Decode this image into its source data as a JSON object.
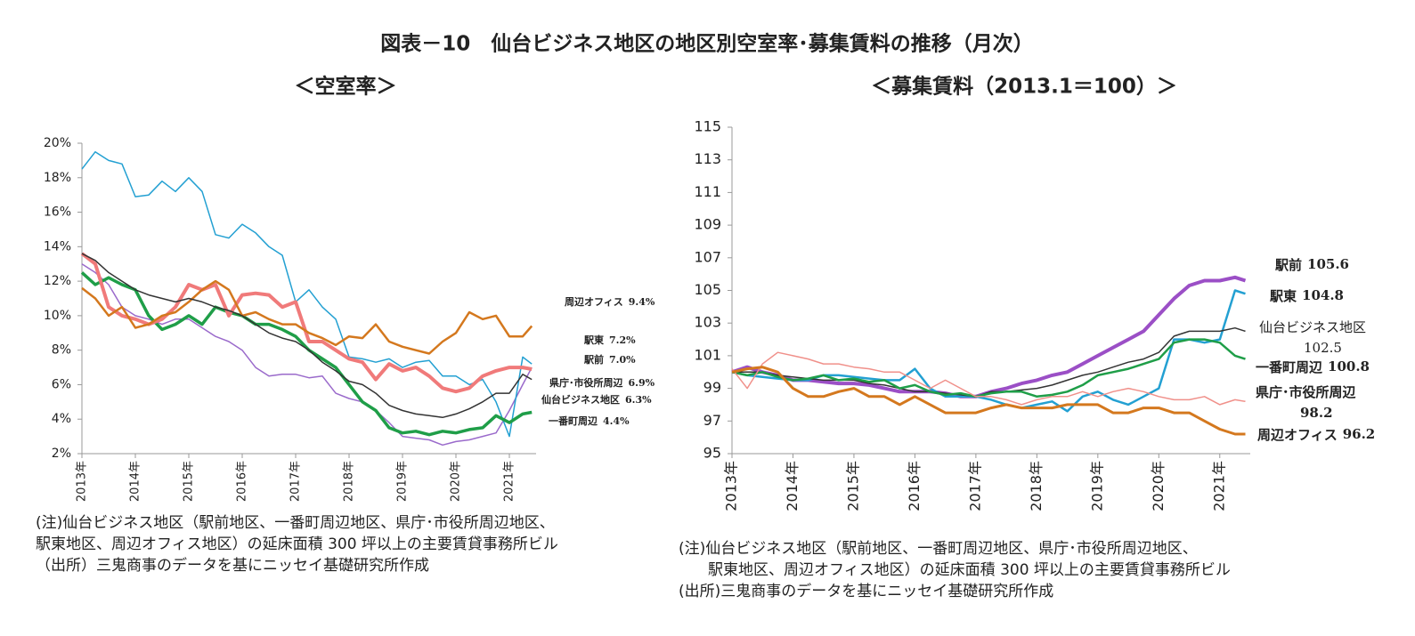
{
  "title": "図表－10　仙台ビジネス地区の地区別空室率･募集賃料の推移（月次）",
  "chart_data": [
    {
      "type": "line",
      "subtitle": "＜空室率＞",
      "x": [
        2013,
        2013.25,
        2013.5,
        2013.75,
        2014,
        2014.25,
        2014.5,
        2014.75,
        2015,
        2015.25,
        2015.5,
        2015.75,
        2016,
        2016.25,
        2016.5,
        2016.75,
        2017,
        2017.25,
        2017.5,
        2017.75,
        2018,
        2018.25,
        2018.5,
        2018.75,
        2019,
        2019.25,
        2019.5,
        2019.75,
        2020,
        2020.25,
        2020.5,
        2020.75,
        2021,
        2021.25,
        2021.42
      ],
      "xlim": [
        2013,
        2021.5
      ],
      "xticks": [
        {
          "value": 2013,
          "label": "2013年"
        },
        {
          "value": 2014,
          "label": "2014年"
        },
        {
          "value": 2015,
          "label": "2015年"
        },
        {
          "value": 2016,
          "label": "2016年"
        },
        {
          "value": 2017,
          "label": "2017年"
        },
        {
          "value": 2018,
          "label": "2018年"
        },
        {
          "value": 2019,
          "label": "2019年"
        },
        {
          "value": 2020,
          "label": "2020年"
        },
        {
          "value": 2021,
          "label": "2021年"
        }
      ],
      "ylim": [
        2,
        20
      ],
      "yticks": [
        {
          "value": 2,
          "label": "2%"
        },
        {
          "value": 4,
          "label": "4%"
        },
        {
          "value": 6,
          "label": "6%"
        },
        {
          "value": 8,
          "label": "8%"
        },
        {
          "value": 10,
          "label": "10%"
        },
        {
          "value": 12,
          "label": "12%"
        },
        {
          "value": 14,
          "label": "14%"
        },
        {
          "value": 16,
          "label": "16%"
        },
        {
          "value": 18,
          "label": "18%"
        },
        {
          "value": 20,
          "label": "20%"
        }
      ],
      "series": [
        {
          "name": "駅前",
          "color": "#9a6acb",
          "values": [
            13.0,
            12.5,
            11.8,
            10.5,
            10.0,
            9.8,
            9.5,
            9.8,
            9.8,
            9.3,
            8.8,
            8.5,
            8.0,
            7.0,
            6.5,
            6.6,
            6.6,
            6.4,
            6.5,
            5.5,
            5.2,
            5.0,
            4.5,
            3.8,
            3.0,
            2.9,
            2.8,
            2.5,
            2.7,
            2.8,
            3.0,
            3.2,
            4.5,
            6.0,
            7.0
          ],
          "value_labels": [
            null,
            null,
            null,
            null,
            null,
            null,
            null,
            null,
            null,
            null,
            null,
            null,
            null,
            null,
            null,
            null,
            null,
            null,
            null,
            null,
            null,
            null,
            null,
            null,
            null,
            null,
            null,
            null,
            null,
            null,
            null,
            null,
            null,
            null,
            "7.0%"
          ]
        },
        {
          "name": "駅東",
          "color": "#23a0d2",
          "values": [
            18.5,
            19.5,
            19.0,
            18.8,
            16.9,
            17.0,
            17.8,
            17.2,
            18.0,
            17.2,
            14.7,
            14.5,
            15.3,
            14.8,
            14.0,
            13.5,
            10.8,
            11.5,
            10.5,
            9.8,
            7.6,
            7.5,
            7.3,
            7.5,
            7.0,
            7.3,
            7.4,
            6.5,
            6.5,
            6.0,
            6.3,
            5.0,
            3.0,
            7.6,
            7.2
          ],
          "value_labels": [
            null,
            null,
            null,
            null,
            null,
            null,
            null,
            null,
            null,
            null,
            null,
            null,
            null,
            null,
            null,
            null,
            null,
            null,
            null,
            null,
            null,
            null,
            null,
            null,
            null,
            null,
            null,
            null,
            null,
            null,
            null,
            null,
            null,
            null,
            "7.2%"
          ]
        },
        {
          "name": "一番町周辺",
          "color": "#1f9e48",
          "values": [
            12.5,
            11.8,
            12.2,
            11.8,
            11.5,
            10.0,
            9.2,
            9.5,
            10.0,
            9.5,
            10.5,
            10.2,
            10.0,
            9.5,
            9.5,
            9.2,
            8.8,
            8.0,
            7.5,
            7.0,
            6.0,
            5.0,
            4.5,
            3.5,
            3.2,
            3.3,
            3.1,
            3.3,
            3.2,
            3.4,
            3.5,
            4.2,
            3.8,
            4.3,
            4.4
          ],
          "value_labels": [
            null,
            null,
            null,
            null,
            null,
            null,
            null,
            null,
            null,
            null,
            null,
            null,
            null,
            null,
            null,
            null,
            null,
            null,
            null,
            null,
            null,
            null,
            null,
            null,
            null,
            null,
            null,
            null,
            null,
            null,
            null,
            null,
            null,
            null,
            "4.4%"
          ]
        },
        {
          "name": "県庁･市役所周辺",
          "color": "#f07a7a",
          "values": [
            13.6,
            13.0,
            10.5,
            10.0,
            9.8,
            9.5,
            9.8,
            10.5,
            11.8,
            11.5,
            11.8,
            10.0,
            11.2,
            11.3,
            11.2,
            10.5,
            10.8,
            8.5,
            8.5,
            8.0,
            7.5,
            7.3,
            6.3,
            7.2,
            6.8,
            7.0,
            6.5,
            5.8,
            5.6,
            5.8,
            6.5,
            6.8,
            7.0,
            7.0,
            6.9
          ],
          "value_labels": [
            null,
            null,
            null,
            null,
            null,
            null,
            null,
            null,
            null,
            null,
            null,
            null,
            null,
            null,
            null,
            null,
            null,
            null,
            null,
            null,
            null,
            null,
            null,
            null,
            null,
            null,
            null,
            null,
            null,
            null,
            null,
            null,
            null,
            null,
            "6.9%"
          ]
        },
        {
          "name": "周辺オフィス",
          "color": "#d4781e",
          "values": [
            11.6,
            11.0,
            10.0,
            10.5,
            9.3,
            9.5,
            10.0,
            10.2,
            10.8,
            11.5,
            12.0,
            11.5,
            10.0,
            10.2,
            9.8,
            9.5,
            9.5,
            9.0,
            8.7,
            8.3,
            8.8,
            8.7,
            9.5,
            8.5,
            8.2,
            8.0,
            7.8,
            8.5,
            9.0,
            10.2,
            9.8,
            10.0,
            8.8,
            8.8,
            9.4
          ],
          "value_labels": [
            null,
            null,
            null,
            null,
            null,
            null,
            null,
            null,
            null,
            null,
            null,
            null,
            null,
            null,
            null,
            null,
            null,
            null,
            null,
            null,
            null,
            null,
            null,
            null,
            null,
            null,
            null,
            null,
            null,
            null,
            null,
            null,
            null,
            null,
            "9.4%"
          ]
        },
        {
          "name": "仙台ビジネス地区",
          "color": "#333333",
          "values": [
            13.6,
            13.2,
            12.5,
            12.0,
            11.5,
            11.2,
            11.0,
            10.8,
            11.0,
            10.8,
            10.5,
            10.3,
            10.0,
            9.5,
            9.0,
            8.7,
            8.5,
            8.0,
            7.3,
            6.8,
            6.2,
            6.0,
            5.5,
            4.8,
            4.5,
            4.3,
            4.2,
            4.1,
            4.3,
            4.6,
            5.0,
            5.5,
            5.5,
            6.6,
            6.3
          ],
          "value_labels": [
            null,
            null,
            null,
            null,
            null,
            null,
            null,
            null,
            null,
            null,
            null,
            null,
            null,
            null,
            null,
            null,
            null,
            null,
            null,
            null,
            null,
            null,
            null,
            null,
            null,
            null,
            null,
            null,
            null,
            null,
            null,
            null,
            null,
            null,
            "6.3%"
          ]
        }
      ],
      "notes": [
        "(注)仙台ビジネス地区（駅前地区、一番町周辺地区、県庁･市役所周辺地区、",
        "駅東地区、周辺オフィス地区）の延床面積 300 坪以上の主要賃貸事務所ビル",
        "（出所）三鬼商事のデータを基にニッセイ基礎研究所作成"
      ]
    },
    {
      "type": "line",
      "subtitle": "＜募集賃料（2013.1＝100）＞",
      "x": [
        2013,
        2013.25,
        2013.5,
        2013.75,
        2014,
        2014.25,
        2014.5,
        2014.75,
        2015,
        2015.25,
        2015.5,
        2015.75,
        2016,
        2016.25,
        2016.5,
        2016.75,
        2017,
        2017.25,
        2017.5,
        2017.75,
        2018,
        2018.25,
        2018.5,
        2018.75,
        2019,
        2019.25,
        2019.5,
        2019.75,
        2020,
        2020.25,
        2020.5,
        2020.75,
        2021,
        2021.25,
        2021.42
      ],
      "xlim": [
        2013,
        2021.5
      ],
      "xticks": [
        {
          "value": 2013,
          "label": "2013年"
        },
        {
          "value": 2014,
          "label": "2014年"
        },
        {
          "value": 2015,
          "label": "2015年"
        },
        {
          "value": 2016,
          "label": "2016年"
        },
        {
          "value": 2017,
          "label": "2017年"
        },
        {
          "value": 2018,
          "label": "2018年"
        },
        {
          "value": 2019,
          "label": "2019年"
        },
        {
          "value": 2020,
          "label": "2020年"
        },
        {
          "value": 2021,
          "label": "2021年"
        }
      ],
      "ylim": [
        95,
        115
      ],
      "yticks": [
        95,
        97,
        99,
        101,
        103,
        105,
        107,
        109,
        111,
        113,
        115
      ],
      "series": [
        {
          "name": "駅前",
          "color": "#9b4fc6",
          "values": [
            100.0,
            100.3,
            100.0,
            99.8,
            99.5,
            99.5,
            99.4,
            99.3,
            99.3,
            99.2,
            99.0,
            98.8,
            98.8,
            98.8,
            98.7,
            98.5,
            98.5,
            98.8,
            99.0,
            99.3,
            99.5,
            99.8,
            100.0,
            100.5,
            101.0,
            101.5,
            102.0,
            102.5,
            103.5,
            104.5,
            105.3,
            105.6,
            105.6,
            105.8,
            105.6
          ]
        },
        {
          "name": "駅東",
          "color": "#23a0d2",
          "values": [
            100.0,
            99.8,
            99.7,
            99.6,
            99.5,
            99.5,
            99.8,
            99.8,
            99.7,
            99.6,
            99.5,
            99.5,
            100.2,
            99.0,
            98.5,
            98.5,
            98.5,
            98.3,
            98.0,
            97.8,
            98.0,
            98.2,
            97.6,
            98.5,
            98.8,
            98.3,
            98.0,
            98.5,
            99.0,
            102.0,
            102.0,
            101.8,
            102.0,
            105.0,
            104.8
          ]
        },
        {
          "name": "仙台ビジネス地区",
          "color": "#333333",
          "values": [
            100.0,
            100.0,
            100.0,
            99.8,
            99.7,
            99.6,
            99.5,
            99.5,
            99.5,
            99.3,
            99.2,
            99.0,
            98.8,
            98.8,
            98.7,
            98.6,
            98.5,
            98.8,
            98.8,
            98.9,
            99.0,
            99.2,
            99.5,
            99.8,
            100.0,
            100.3,
            100.6,
            100.8,
            101.2,
            102.2,
            102.5,
            102.5,
            102.5,
            102.7,
            102.5
          ]
        },
        {
          "name": "一番町周辺",
          "color": "#1f9e48",
          "values": [
            100.0,
            99.8,
            100.0,
            99.7,
            99.5,
            99.6,
            99.8,
            99.5,
            99.6,
            99.4,
            99.5,
            99.0,
            99.2,
            98.8,
            98.6,
            98.7,
            98.5,
            98.7,
            98.8,
            98.8,
            98.5,
            98.6,
            98.8,
            99.2,
            99.8,
            100.0,
            100.2,
            100.5,
            100.8,
            101.8,
            102.0,
            102.0,
            101.8,
            101.0,
            100.8
          ]
        },
        {
          "name": "県庁･市役所周辺",
          "color": "#f0908a",
          "values": [
            100.2,
            99.0,
            100.5,
            101.2,
            101.0,
            100.8,
            100.5,
            100.5,
            100.3,
            100.2,
            100.0,
            100.0,
            99.5,
            99.0,
            99.5,
            99.0,
            98.5,
            98.5,
            98.3,
            98.0,
            98.3,
            98.5,
            98.5,
            98.8,
            98.5,
            98.8,
            99.0,
            98.8,
            98.5,
            98.3,
            98.3,
            98.5,
            98.0,
            98.3,
            98.2
          ]
        },
        {
          "name": "周辺オフィス",
          "color": "#d4781e",
          "values": [
            100.0,
            100.2,
            100.3,
            100.0,
            99.0,
            98.5,
            98.5,
            98.8,
            99.0,
            98.5,
            98.5,
            98.0,
            98.5,
            98.0,
            97.5,
            97.5,
            97.5,
            97.8,
            98.0,
            97.8,
            97.8,
            97.8,
            98.0,
            98.0,
            98.0,
            97.5,
            97.5,
            97.8,
            97.8,
            97.5,
            97.5,
            97.0,
            96.5,
            96.2,
            96.2
          ]
        }
      ],
      "notes": [
        "(注)仙台ビジネス地区（駅前地区、一番町周辺地区、県庁･市役所周辺地区、",
        "駅東地区、周辺オフィス地区）の延床面積 300 坪以上の主要賃貸事務所ビル",
        "(出所)三鬼商事のデータを基にニッセイ基礎研究所作成"
      ]
    }
  ]
}
